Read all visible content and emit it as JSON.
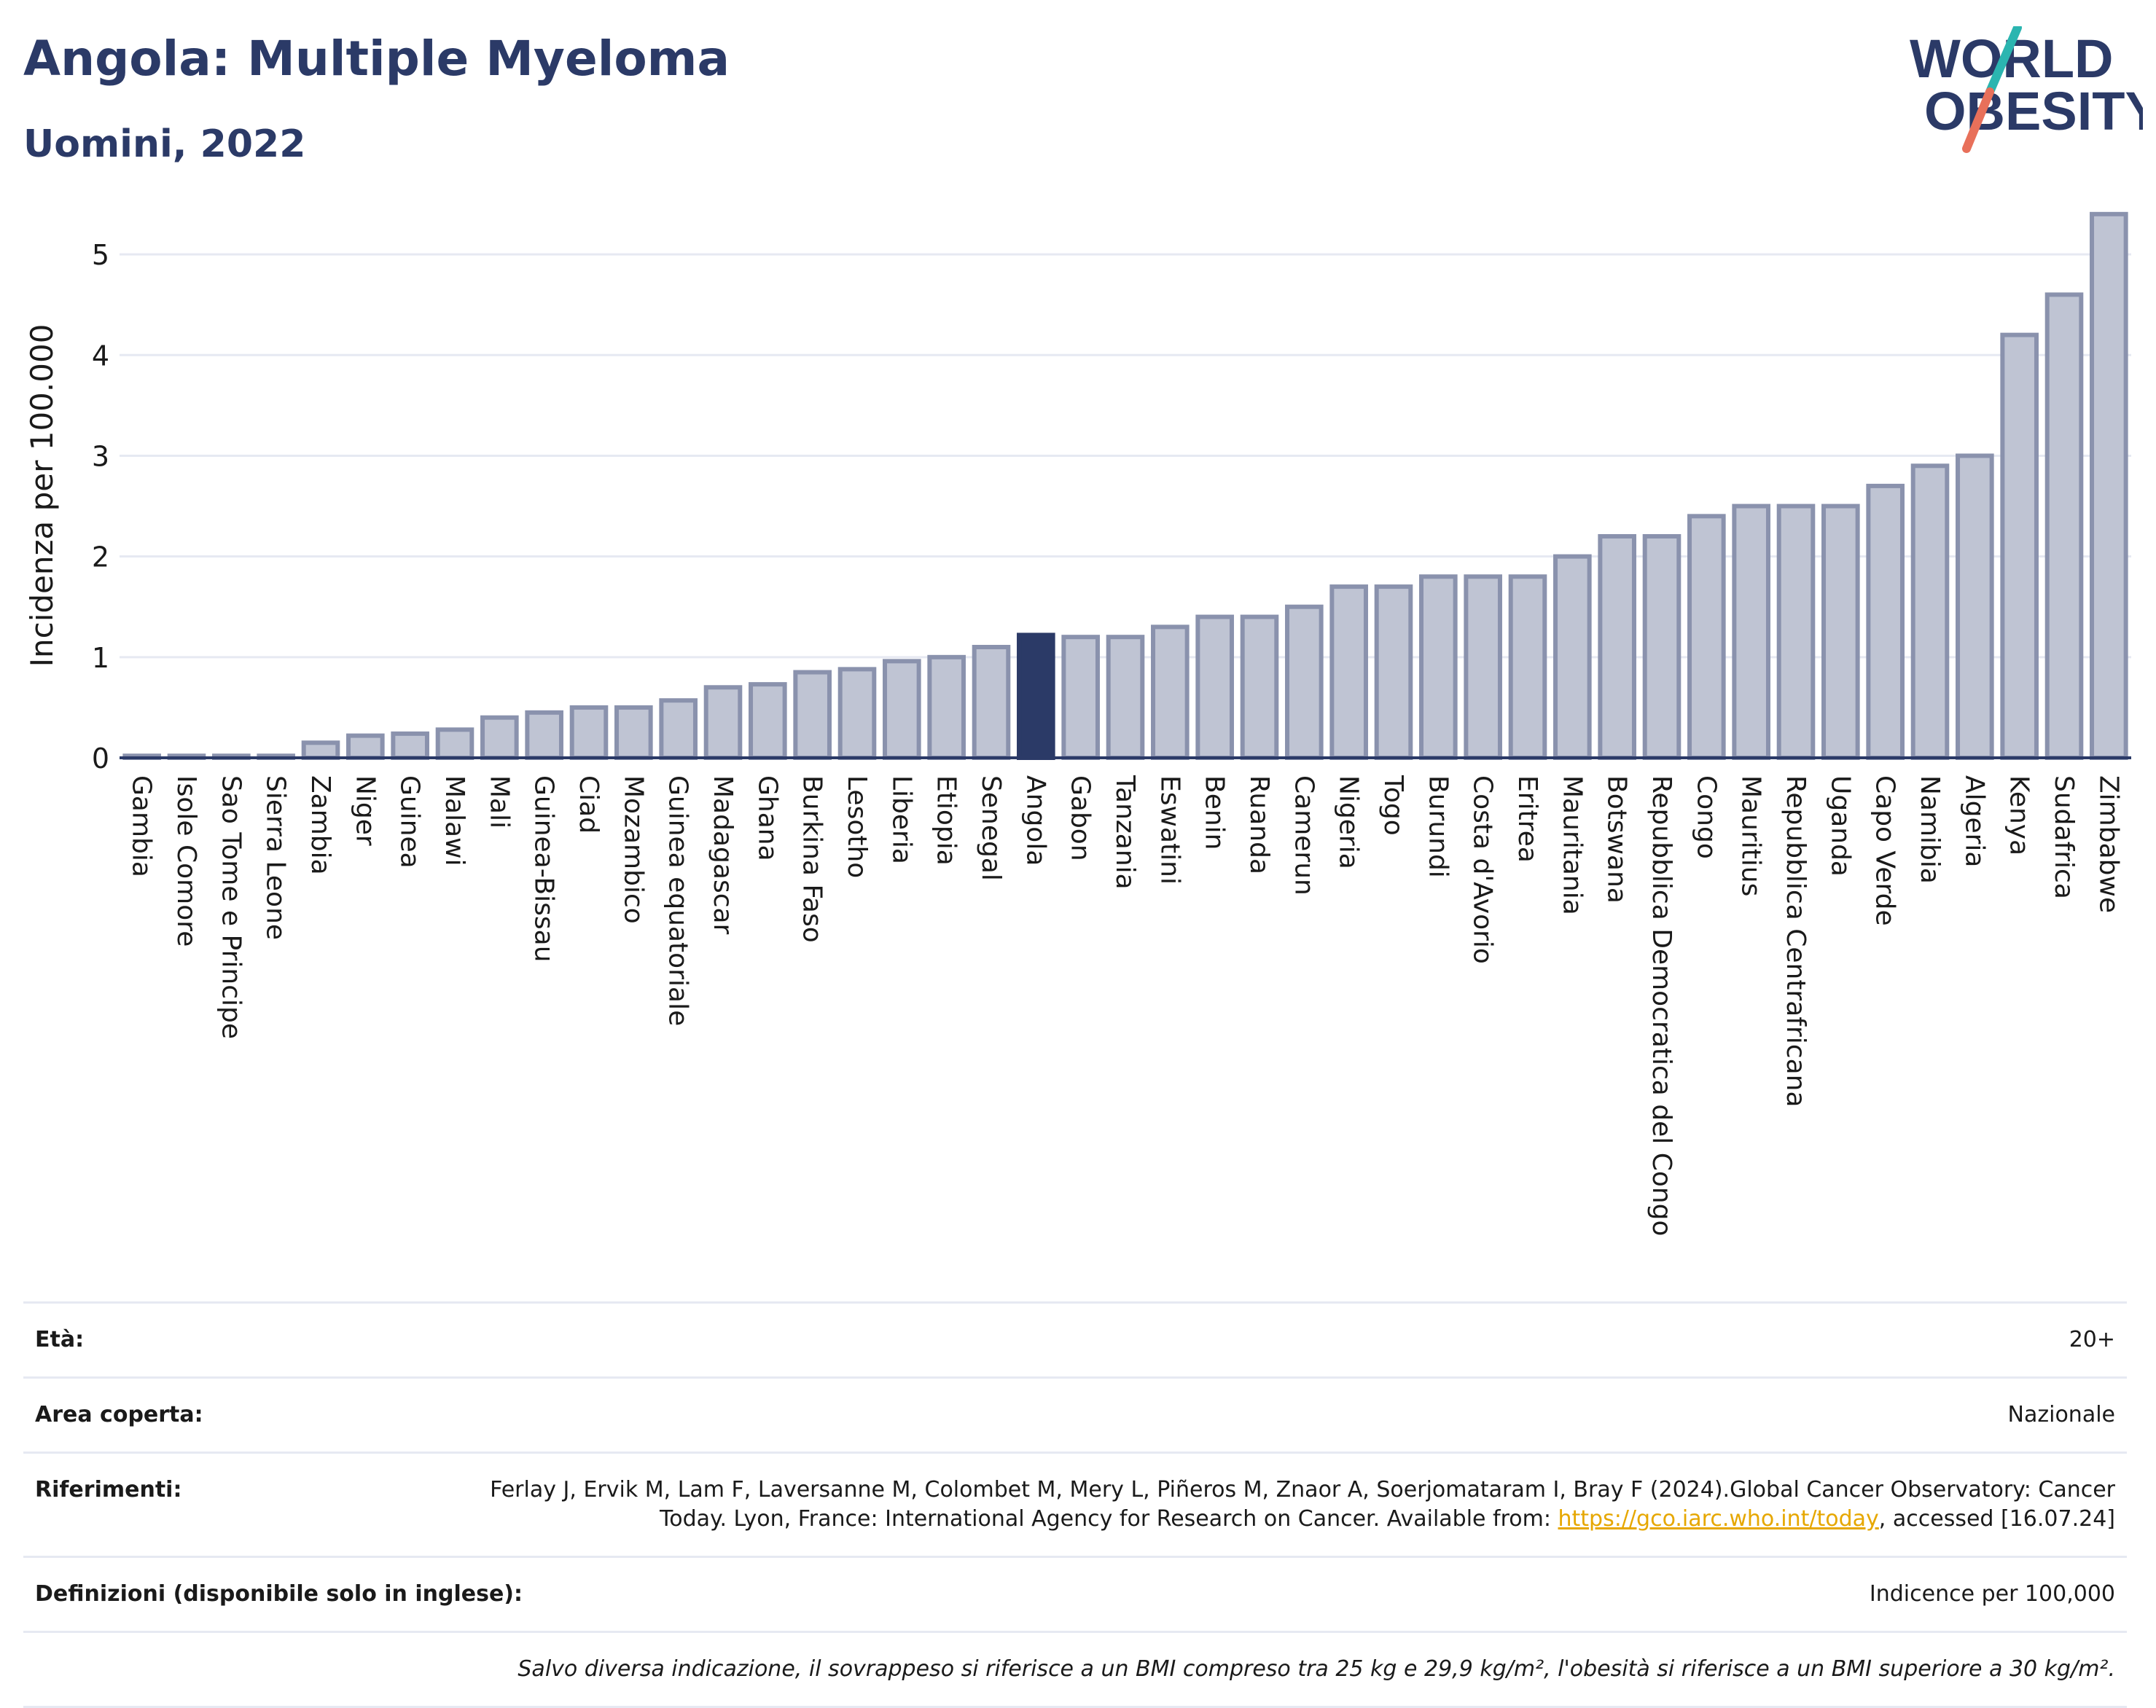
{
  "header": {
    "title": "Angola: Multiple Myeloma",
    "subtitle": "Uomini, 2022"
  },
  "logo": {
    "line1": "WORLD",
    "line2": "OBESITY",
    "accent_colors": [
      "#2bb5b0",
      "#e8705a"
    ]
  },
  "colors": {
    "bar": "#bfc4d3",
    "bar_border": "#8a92ad",
    "highlight": "#2b3a67",
    "grid": "#e6e9f2",
    "axis": "#2b3a67"
  },
  "chart_data": {
    "type": "bar",
    "ylabel": "Incidenza per 100.000",
    "ylim": [
      0,
      5.5
    ],
    "yticks": [
      0,
      1,
      2,
      3,
      4,
      5
    ],
    "highlight": "Angola",
    "grid": true,
    "categories": [
      "Gambia",
      "Isole Comore",
      "Sao Tome e Principe",
      "Sierra Leone",
      "Zambia",
      "Niger",
      "Guinea",
      "Malawi",
      "Mali",
      "Guinea-Bissau",
      "Ciad",
      "Mozambico",
      "Guinea equatoriale",
      "Madagascar",
      "Ghana",
      "Burkina Faso",
      "Lesotho",
      "Liberia",
      "Etiopia",
      "Senegal",
      "Angola",
      "Gabon",
      "Tanzania",
      "Eswatini",
      "Benin",
      "Ruanda",
      "Camerun",
      "Nigeria",
      "Togo",
      "Burundi",
      "Costa d'Avorio",
      "Eritrea",
      "Mauritania",
      "Botswana",
      "Repubblica Democratica del Congo",
      "Congo",
      "Mauritius",
      "Repubblica Centrafricana",
      "Uganda",
      "Capo Verde",
      "Namibia",
      "Algeria",
      "Kenya",
      "Sudafrica",
      "Zimbabwe"
    ],
    "values": [
      0.02,
      0.02,
      0.02,
      0.02,
      0.15,
      0.22,
      0.24,
      0.28,
      0.4,
      0.45,
      0.5,
      0.5,
      0.57,
      0.7,
      0.73,
      0.85,
      0.88,
      0.96,
      1.0,
      1.1,
      1.22,
      1.2,
      1.2,
      1.3,
      1.4,
      1.4,
      1.5,
      1.7,
      1.7,
      1.8,
      1.8,
      1.8,
      2.0,
      2.2,
      2.2,
      2.4,
      2.5,
      2.5,
      2.5,
      2.7,
      2.9,
      3.0,
      4.2,
      4.6,
      5.4
    ]
  },
  "meta": {
    "age_label": "Età:",
    "age_value": "20+",
    "area_label": "Area coperta:",
    "area_value": "Nazionale",
    "refs_label": "Riferimenti:",
    "refs_text_1": "Ferlay J, Ervik M, Lam F, Laversanne M, Colombet M, Mery L, Piñeros M, Znaor A, Soerjomataram I, Bray F (2024).Global Cancer Observatory: Cancer Today. Lyon, France: International Agency for Research on Cancer. Available from: ",
    "refs_link": "https://gco.iarc.who.int/today",
    "refs_text_2": ", accessed [16.07.24]",
    "defs_label": "Definizioni (disponibile solo in inglese):",
    "defs_value": "Indicence per 100,000",
    "note": "Salvo diversa indicazione, il sovrappeso si riferisce a un BMI compreso tra 25 kg e 29,9 kg/m², l'obesità si riferisce a un BMI superiore a 30 kg/m²."
  }
}
